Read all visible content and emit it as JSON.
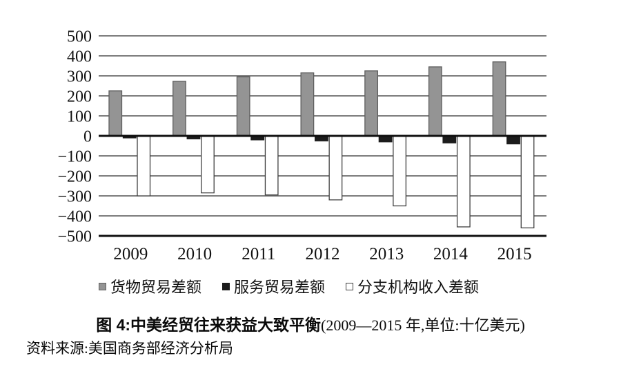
{
  "colors": {
    "background": "#ffffff",
    "grid": "#2e2e2e",
    "axis": "#101010",
    "text": "#111111"
  },
  "chart_data": {
    "type": "bar",
    "figure_label": "图 4:",
    "title": "中美经贸往来获益大致平衡",
    "title_qualifier": "(2009—2015 年,单位:十亿美元)",
    "source": "资料来源:美国商务部经济分析局",
    "categories": [
      "2009",
      "2010",
      "2011",
      "2012",
      "2013",
      "2014",
      "2015"
    ],
    "series": [
      {
        "id": "goods",
        "name": "货物贸易差额",
        "fill": "#949494",
        "stroke": "#5e5e5e",
        "values": [
          225,
          273,
          295,
          315,
          325,
          345,
          370
        ]
      },
      {
        "id": "services",
        "name": "服务贸易差额",
        "fill": "#1c1c1c",
        "stroke": "#1c1c1c",
        "values": [
          -10,
          -15,
          -20,
          -25,
          -30,
          -35,
          -40
        ]
      },
      {
        "id": "branch-income",
        "name": "分支机构收入差额",
        "fill": "#ffffff",
        "stroke": "#3f3f3f",
        "values": [
          -300,
          -285,
          -295,
          -320,
          -350,
          -455,
          -460
        ]
      }
    ],
    "ylim": [
      -500,
      500
    ],
    "ytick_step": 100,
    "ytick_labels": [
      "500",
      "400",
      "300",
      "200",
      "100",
      "0",
      "−100",
      "−200",
      "−300",
      "−400",
      "−500"
    ],
    "grid": true,
    "legend_position": "bottom"
  }
}
